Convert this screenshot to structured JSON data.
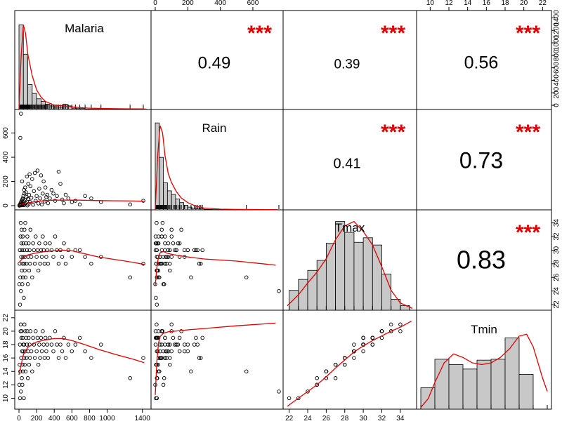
{
  "chart_data": {
    "type": "scatter",
    "variables": [
      "Malaria",
      "Rain",
      "Tmax",
      "Tmin"
    ],
    "colors": {
      "smooth_line": "#e00000",
      "stars": "#e00000",
      "hist_fill": "#c8c8c8",
      "points": "#000000"
    },
    "ranges": {
      "Malaria": [
        0,
        1450
      ],
      "Rain": [
        0,
        760
      ],
      "Tmax": [
        21.8,
        35.3
      ],
      "Tmin": [
        9,
        22.5
      ]
    },
    "ticks": {
      "Malaria": [
        0,
        200,
        400,
        600,
        800,
        1000,
        1400
      ],
      "Malaria_right": [
        0,
        200,
        400,
        600,
        800,
        1000,
        1200,
        1400
      ],
      "Rain": [
        0,
        200,
        400,
        600
      ],
      "Rain_top": [
        0,
        200,
        400,
        600
      ],
      "Tmax": [
        22,
        24,
        26,
        28,
        30,
        32,
        34
      ],
      "Tmax_right": [
        22,
        24,
        26,
        28,
        30,
        32,
        34
      ],
      "Tmin": [
        10,
        12,
        14,
        16,
        18,
        20,
        22
      ],
      "Tmin_top": [
        10,
        12,
        14,
        16,
        18,
        20,
        22
      ]
    },
    "correlations": [
      {
        "row": 0,
        "col": 1,
        "value": "0.49",
        "stars": "***",
        "size": 24
      },
      {
        "row": 0,
        "col": 2,
        "value": "0.39",
        "stars": "***",
        "size": 19
      },
      {
        "row": 0,
        "col": 3,
        "value": "0.56",
        "stars": "***",
        "size": 25
      },
      {
        "row": 1,
        "col": 2,
        "value": "0.41",
        "stars": "***",
        "size": 20
      },
      {
        "row": 1,
        "col": 3,
        "value": "0.73",
        "stars": "***",
        "size": 32
      },
      {
        "row": 2,
        "col": 3,
        "value": "0.83",
        "stars": "***",
        "size": 36
      }
    ],
    "histograms": {
      "Malaria": {
        "edges": [
          0,
          50,
          100,
          150,
          200,
          250,
          300,
          350,
          400,
          450,
          500,
          550,
          600,
          650,
          700,
          750,
          800,
          850,
          900,
          950,
          1000,
          1050,
          1100,
          1150,
          1200,
          1250,
          1300,
          1350,
          1400,
          1450
        ],
        "density": [
          0.95,
          0.62,
          0.28,
          0.18,
          0.12,
          0.09,
          0.06,
          0.04,
          0.03,
          0.025,
          0.06,
          0.04,
          0.015,
          0.01,
          0.01,
          0.005,
          0.005,
          0.004,
          0.004,
          0.004,
          0.003,
          0.003,
          0.003,
          0.003,
          0.003,
          0.003,
          0.003,
          0.003,
          0.004
        ]
      },
      "Rain": {
        "edges": [
          0,
          25,
          50,
          75,
          100,
          125,
          150,
          175,
          200,
          225,
          250,
          275,
          300,
          325,
          350,
          375,
          400,
          425,
          450,
          475,
          500,
          525,
          550,
          575,
          600,
          625,
          650,
          675,
          700,
          725,
          750
        ],
        "density": [
          0.96,
          0.58,
          0.3,
          0.21,
          0.17,
          0.12,
          0.08,
          0.05,
          0.03,
          0.02,
          0.02,
          0.01,
          0.005,
          0.004,
          0.003,
          0.003,
          0.003,
          0.003,
          0.003,
          0.003,
          0.003,
          0.003,
          0.003,
          0.003,
          0.003,
          0.003,
          0.003,
          0.003,
          0.003,
          0.004
        ]
      },
      "Tmax": {
        "edges": [
          22,
          23,
          24,
          25,
          26,
          27,
          28,
          29,
          30,
          31,
          32,
          33,
          34,
          35
        ],
        "density": [
          0.22,
          0.34,
          0.44,
          0.55,
          0.74,
          0.98,
          0.86,
          0.75,
          0.8,
          0.72,
          0.4,
          0.12,
          0.05
        ]
      },
      "Tmin": {
        "edges": [
          9,
          10.5,
          12,
          13.5,
          15,
          16.5,
          18,
          19.5,
          21,
          22.5
        ],
        "density": [
          0.24,
          0.56,
          0.5,
          0.45,
          0.55,
          0.56,
          0.8,
          0.39,
          0.0
        ]
      }
    },
    "smooth": {
      "Malaria": {
        "x": [
          0,
          25,
          50,
          75,
          100,
          150,
          200,
          250,
          300,
          400,
          500,
          600,
          700,
          800,
          1000,
          1200,
          1400,
          1450
        ],
        "y": [
          0.0,
          0.6,
          0.95,
          0.85,
          0.62,
          0.38,
          0.22,
          0.14,
          0.09,
          0.05,
          0.04,
          0.03,
          0.02,
          0.015,
          0.01,
          0.008,
          0.006,
          0.004
        ]
      },
      "Rain": {
        "x": [
          0,
          15,
          30,
          45,
          60,
          80,
          100,
          130,
          160,
          200,
          250,
          300,
          400,
          500,
          600,
          750
        ],
        "y": [
          0.0,
          0.6,
          0.93,
          0.85,
          0.6,
          0.4,
          0.3,
          0.2,
          0.13,
          0.08,
          0.04,
          0.02,
          0.008,
          0.005,
          0.004,
          0.002
        ]
      },
      "Tmax": {
        "x": [
          21.8,
          23,
          24,
          25,
          26,
          27,
          28,
          29,
          30,
          31,
          32,
          33,
          34,
          35.3
        ],
        "y": [
          0.05,
          0.17,
          0.3,
          0.42,
          0.57,
          0.78,
          0.93,
          0.98,
          0.87,
          0.72,
          0.48,
          0.22,
          0.08,
          0.02
        ]
      },
      "Tmin": {
        "x": [
          9,
          9.8,
          10.5,
          11.5,
          12.5,
          13.5,
          14.5,
          15.5,
          16.5,
          17.5,
          18.5,
          19.5,
          20.3,
          21,
          22,
          22.5
        ],
        "y": [
          0.02,
          0.12,
          0.3,
          0.52,
          0.62,
          0.58,
          0.52,
          0.5,
          0.52,
          0.58,
          0.68,
          0.82,
          0.84,
          0.7,
          0.35,
          0.2
        ]
      }
    },
    "loess": {
      "Rain|Malaria": {
        "x": [
          0,
          50,
          100,
          200,
          300,
          400,
          500,
          700,
          900,
          1100,
          1300,
          1420
        ],
        "y": [
          5,
          15,
          22,
          35,
          42,
          45,
          46,
          45,
          42,
          40,
          38,
          36
        ]
      },
      "Tmax|Malaria": {
        "x": [
          0,
          50,
          100,
          200,
          300,
          400,
          500,
          600,
          700,
          900,
          1100,
          1300,
          1420
        ],
        "y": [
          28.2,
          28.9,
          29.3,
          29.6,
          29.8,
          29.9,
          30.0,
          29.9,
          29.6,
          29.0,
          28.6,
          28.2,
          27.9
        ]
      },
      "Tmin|Malaria": {
        "x": [
          0,
          50,
          100,
          200,
          300,
          400,
          500,
          600,
          700,
          900,
          1100,
          1300,
          1420
        ],
        "y": [
          13.5,
          16.5,
          17.6,
          18.4,
          18.7,
          18.9,
          18.9,
          18.6,
          18.2,
          17.3,
          16.5,
          15.8,
          15.3
        ]
      },
      "Tmax|Rain": {
        "x": [
          0,
          10,
          20,
          30,
          50,
          80,
          120,
          200,
          300,
          500,
          740
        ],
        "y": [
          24.8,
          27.5,
          29.0,
          29.6,
          29.8,
          29.5,
          29.3,
          29.0,
          28.7,
          28.4,
          27.8
        ]
      },
      "Tmin|Rain": {
        "x": [
          0,
          10,
          20,
          30,
          50,
          80,
          120,
          200,
          300,
          500,
          740
        ],
        "y": [
          10.5,
          15.5,
          18.2,
          19.2,
          19.7,
          19.9,
          20.0,
          20.2,
          20.4,
          20.8,
          21.2
        ]
      },
      "Tmin|Tmax": {
        "x": [
          21.8,
          23,
          24,
          25,
          26,
          27,
          28,
          29,
          30,
          31,
          32,
          33,
          34,
          35.2
        ],
        "y": [
          8.8,
          10.0,
          11.0,
          12.0,
          13.2,
          14.5,
          15.7,
          16.9,
          17.8,
          18.6,
          19.3,
          20.0,
          20.6,
          21.5
        ]
      }
    },
    "points": {
      "x_Malaria": [
        5,
        8,
        10,
        12,
        15,
        18,
        20,
        22,
        25,
        28,
        30,
        33,
        35,
        38,
        40,
        42,
        45,
        48,
        50,
        55,
        58,
        60,
        62,
        65,
        70,
        72,
        75,
        80,
        85,
        90,
        95,
        100,
        105,
        110,
        115,
        120,
        125,
        130,
        140,
        150,
        160,
        170,
        180,
        190,
        200,
        210,
        220,
        230,
        240,
        250,
        260,
        270,
        280,
        290,
        300,
        310,
        320,
        330,
        350,
        370,
        390,
        410,
        430,
        450,
        470,
        490,
        510,
        530,
        560,
        600,
        640,
        690,
        750,
        820,
        930,
        1260,
        1410
      ],
      "Rain": [
        0,
        5,
        2,
        10,
        560,
        20,
        8,
        760,
        30,
        3,
        40,
        12,
        200,
        50,
        6,
        60,
        25,
        15,
        80,
        4,
        130,
        35,
        100,
        9,
        150,
        45,
        20,
        110,
        70,
        240,
        2,
        55,
        180,
        14,
        90,
        260,
        30,
        160,
        65,
        220,
        7,
        120,
        270,
        40,
        80,
        290,
        18,
        140,
        60,
        250,
        10,
        100,
        200,
        35,
        150,
        70,
        90,
        20,
        60,
        130,
        100,
        40,
        80,
        280,
        180,
        50,
        20,
        90,
        60,
        30,
        40,
        10,
        80,
        60,
        30,
        10,
        40
      ],
      "Tmax": [
        25,
        28,
        30,
        22,
        26,
        32,
        34,
        24,
        29,
        31,
        33,
        27,
        30,
        25,
        28,
        32,
        26,
        29,
        31,
        23,
        30,
        28,
        33,
        27,
        29,
        34,
        26,
        31,
        28,
        30,
        32,
        25,
        29,
        31,
        27,
        30,
        28,
        33,
        29,
        26,
        31,
        30,
        28,
        32,
        29,
        30,
        27,
        31,
        28,
        30,
        29,
        32,
        30,
        28,
        31,
        29,
        30,
        28,
        31,
        30,
        29,
        32,
        30,
        28,
        30,
        29,
        31,
        28,
        30,
        29,
        30,
        30,
        29,
        28,
        29,
        26,
        28
      ],
      "Tmin": [
        12,
        15,
        18,
        10,
        14,
        20,
        21,
        11,
        16,
        19,
        20,
        13,
        17,
        12,
        15,
        19,
        14,
        17,
        18,
        10,
        18,
        16,
        21,
        15,
        17,
        20,
        14,
        19,
        16,
        18,
        20,
        13,
        17,
        19,
        15,
        18,
        16,
        20,
        17,
        14,
        19,
        18,
        16,
        20,
        17,
        19,
        15,
        18,
        16,
        19,
        17,
        20,
        18,
        16,
        19,
        17,
        18,
        16,
        19,
        18,
        17,
        20,
        18,
        16,
        18,
        17,
        19,
        16,
        18,
        17,
        18,
        19,
        17,
        16,
        18,
        13,
        16
      ]
    }
  }
}
